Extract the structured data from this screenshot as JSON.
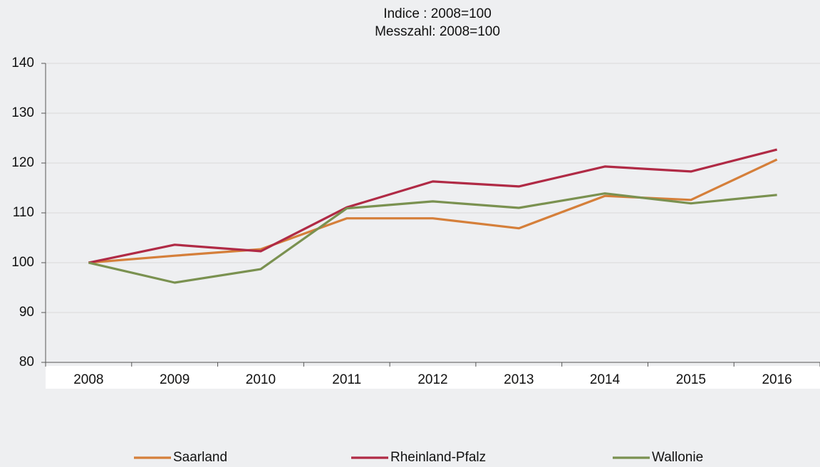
{
  "chart_data": {
    "type": "line",
    "title": "Indice : 2008=100",
    "subtitle": "Messzahl: 2008=100",
    "categories": [
      "2008",
      "2009",
      "2010",
      "2011",
      "2012",
      "2013",
      "2014",
      "2015",
      "2016"
    ],
    "series": [
      {
        "name": "Saarland",
        "color": "#d57f3a",
        "values": [
          100,
          101.4,
          102.7,
          108.9,
          108.9,
          106.9,
          113.4,
          112.6,
          120.7
        ]
      },
      {
        "name": "Rheinland-Pfalz",
        "color": "#b02a45",
        "values": [
          100,
          103.6,
          102.3,
          111.1,
          116.3,
          115.3,
          119.3,
          118.3,
          122.7
        ]
      },
      {
        "name": "Wallonie",
        "color": "#7a9150",
        "values": [
          100,
          96,
          98.7,
          110.9,
          112.3,
          111,
          113.9,
          111.9,
          113.6
        ]
      }
    ],
    "ylim": [
      80,
      140
    ],
    "yticks": [
      80,
      90,
      100,
      110,
      120,
      130,
      140
    ],
    "grid": true,
    "legend": "bottom"
  }
}
